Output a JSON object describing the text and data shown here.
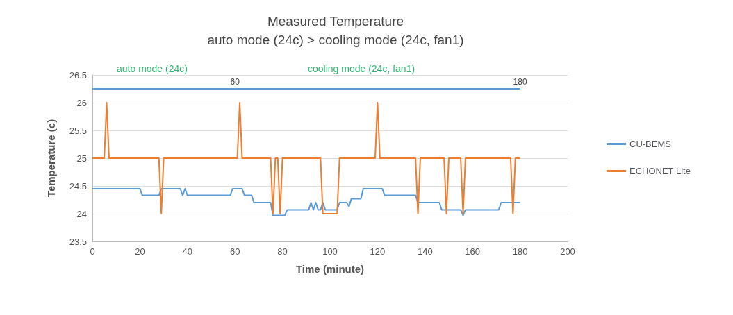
{
  "chart_data": {
    "type": "line",
    "title": "Measured Temperature",
    "subtitle": "auto mode (24c) > cooling mode (24c, fan1)",
    "xlabel": "Time (minute)",
    "ylabel": "Temperature (c)",
    "xlim": [
      0,
      200
    ],
    "xticks": [
      0,
      20,
      40,
      60,
      80,
      100,
      120,
      140,
      160,
      180,
      200
    ],
    "ylim": [
      23.5,
      26.5
    ],
    "yticks": [
      23.5,
      24,
      24.5,
      25,
      25.5,
      26,
      26.5
    ],
    "grid": "y",
    "legend": "right",
    "marker": "none",
    "line_style": "solid",
    "annotations": [
      "auto mode (24c)",
      "cooling mode (24c, fan1)",
      {
        "text": "60",
        "x": 60,
        "y": 26.3
      },
      {
        "text": "180",
        "x": 180,
        "y": 26.3
      }
    ],
    "series": [
      {
        "color": "#5b9bd5",
        "x": [
          0,
          29,
          60,
          119,
          180
        ],
        "values": [
          26.25,
          26.25,
          26.25,
          26.25,
          26.25
        ]
      },
      {
        "name": "CU-BEMS",
        "color": "#5b9bd5",
        "x": [
          0,
          20,
          21,
          28,
          29,
          37,
          38,
          39,
          40,
          41,
          58,
          59,
          63,
          64,
          67,
          68,
          75,
          76,
          81,
          82,
          91,
          92,
          93,
          94,
          95,
          96,
          97,
          98,
          103,
          104,
          107,
          108,
          109,
          110,
          113,
          114,
          122,
          123,
          136,
          137,
          146,
          147,
          155,
          156,
          157,
          171,
          172,
          180
        ],
        "values": [
          24.45,
          24.45,
          24.33,
          24.33,
          24.45,
          24.45,
          24.33,
          24.45,
          24.33,
          24.33,
          24.33,
          24.45,
          24.45,
          24.33,
          24.33,
          24.2,
          24.2,
          23.97,
          23.97,
          24.07,
          24.07,
          24.2,
          24.07,
          24.2,
          24.07,
          24.07,
          24.2,
          24.07,
          24.07,
          24.2,
          24.2,
          24.13,
          24.27,
          24.27,
          24.27,
          24.45,
          24.45,
          24.33,
          24.33,
          24.2,
          24.2,
          24.07,
          24.07,
          23.97,
          24.07,
          24.07,
          24.2,
          24.2
        ]
      },
      {
        "name": "ECHONET Lite",
        "color": "#ed7d31",
        "x": [
          0,
          5,
          6,
          7,
          28,
          29,
          30,
          61,
          62,
          63,
          75,
          76,
          77,
          78,
          79,
          80,
          96,
          97,
          103,
          104,
          119,
          120,
          121,
          136,
          137,
          138,
          148,
          149,
          150,
          155,
          156,
          157,
          176,
          177,
          178,
          180
        ],
        "values": [
          25,
          25,
          26,
          25,
          25,
          24,
          25,
          25,
          26,
          25,
          25,
          24,
          25,
          25,
          24,
          25,
          25,
          24,
          24,
          25,
          25,
          26,
          25,
          25,
          24,
          25,
          25,
          24,
          25,
          25,
          24,
          25,
          25,
          24,
          25,
          25
        ]
      }
    ]
  }
}
